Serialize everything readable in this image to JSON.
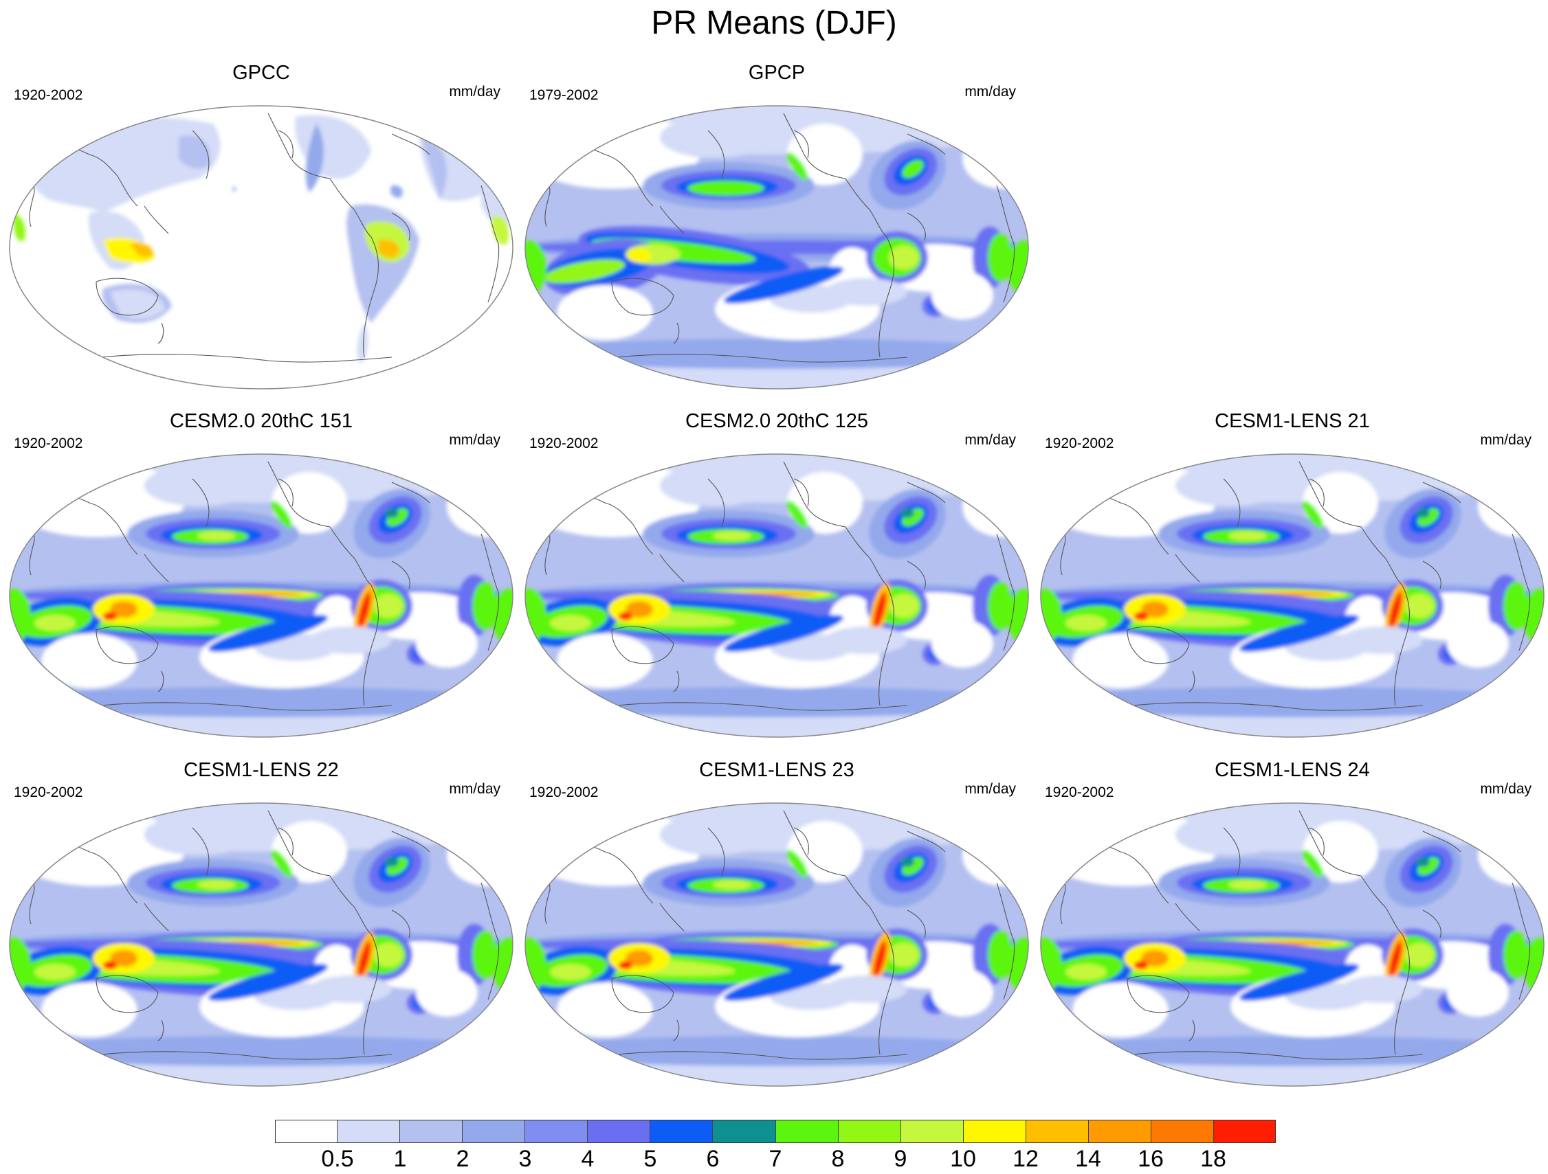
{
  "title": "PR Means (DJF)",
  "panels": [
    {
      "title": "GPCC",
      "years": "1920-2002",
      "units": "mm/day",
      "type": "obs-land"
    },
    {
      "title": "GPCP",
      "years": "1979-2002",
      "units": "mm/day",
      "type": "obs"
    },
    {
      "title": "CESM2.0 20thC 151",
      "years": "1920-2002",
      "units": "mm/day",
      "type": "model"
    },
    {
      "title": "CESM2.0 20thC 125",
      "years": "1920-2002",
      "units": "mm/day",
      "type": "model"
    },
    {
      "title": "CESM1-LENS 21",
      "years": "1920-2002",
      "units": "mm/day",
      "type": "model"
    },
    {
      "title": "CESM1-LENS 22",
      "years": "1920-2002",
      "units": "mm/day",
      "type": "model"
    },
    {
      "title": "CESM1-LENS 23",
      "years": "1920-2002",
      "units": "mm/day",
      "type": "model"
    },
    {
      "title": "CESM1-LENS 24",
      "years": "1920-2002",
      "units": "mm/day",
      "type": "model"
    }
  ],
  "colorbar": {
    "labels": [
      "0.5",
      "1",
      "2",
      "3",
      "4",
      "5",
      "6",
      "7",
      "8",
      "9",
      "10",
      "12",
      "14",
      "16",
      "18"
    ],
    "colors": [
      "#ffffff",
      "#d4dcf7",
      "#b4c0f0",
      "#93a9ec",
      "#7f8ef0",
      "#6a6ff2",
      "#0c5cf5",
      "#0e9090",
      "#5cf50f",
      "#92f715",
      "#c4f73d",
      "#fff700",
      "#ffbf00",
      "#ff9a00",
      "#ff7800",
      "#ff1e00"
    ]
  }
}
